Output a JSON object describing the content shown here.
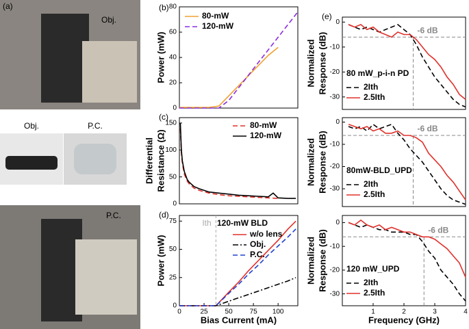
{
  "photo_panel": {
    "label": "(a)",
    "top_label": "Obj.",
    "mid_left_label": "Obj.",
    "mid_right_label": "P.C.",
    "bottom_label": "P.C."
  },
  "chart_data": [
    {
      "type": "line",
      "panel": "(b)",
      "ylabel": "Power (mW)",
      "x": [
        0,
        10,
        20,
        30,
        40,
        50,
        60,
        70,
        80,
        90,
        100,
        110,
        120
      ],
      "xlim": [
        0,
        120
      ],
      "ylim": [
        0,
        80
      ],
      "yticks": [
        0,
        20,
        40,
        60,
        80
      ],
      "series": [
        {
          "name": "80-mW",
          "color": "#f0a030",
          "dash": "solid",
          "values": [
            0.5,
            0.5,
            0.5,
            0.5,
            1.6,
            9.6,
            17.6,
            25.6,
            33.6,
            41.6,
            48,
            null,
            null
          ]
        },
        {
          "name": "120-mW",
          "color": "#8a2be2",
          "dash": "dashed",
          "values": [
            0,
            0,
            0,
            0,
            0,
            6,
            16,
            26,
            36,
            46,
            56,
            66,
            76
          ]
        }
      ]
    },
    {
      "type": "line",
      "panel": "(c)",
      "ylabel": [
        "Differential",
        "Resistance (Ω)"
      ],
      "x": [
        1,
        2,
        3,
        5,
        8,
        10,
        15,
        20,
        30,
        40,
        50,
        60,
        70,
        80,
        90,
        95,
        100,
        110,
        118
      ],
      "xlim": [
        0,
        120
      ],
      "ylim": [
        0,
        160
      ],
      "yticks": [
        0,
        50,
        100,
        150
      ],
      "series": [
        {
          "name": "80-mW",
          "color": "#e0302a",
          "dash": "dashed",
          "values": [
            140,
            95,
            75,
            55,
            42,
            37,
            29,
            25,
            20,
            17,
            15,
            14,
            13,
            12,
            11,
            10.5,
            10,
            null,
            null
          ]
        },
        {
          "name": "120-mW",
          "color": "#000000",
          "dash": "solid",
          "values": [
            150,
            100,
            80,
            60,
            45,
            40,
            32,
            28,
            22,
            20,
            18,
            16,
            15,
            14,
            13,
            20,
            11,
            10,
            10
          ]
        }
      ]
    },
    {
      "type": "line",
      "panel": "(d)",
      "ylabel": "Power (mW)",
      "xlabel": "Bias Current (mA)",
      "note": "120-mW BLD",
      "ref": {
        "x": 37,
        "label": "Ith"
      },
      "x": [
        0,
        10,
        20,
        30,
        37,
        40,
        50,
        60,
        70,
        80,
        90,
        100,
        110,
        118
      ],
      "xlim": [
        0,
        120
      ],
      "xticks": [
        0,
        25,
        50,
        75,
        100
      ],
      "ylim": [
        0,
        80
      ],
      "yticks": [
        0,
        25,
        50,
        75
      ],
      "series": [
        {
          "name": "w/o lens",
          "color": "#e0302a",
          "dash": "solid",
          "values": [
            0,
            0,
            0,
            0,
            0,
            2.8,
            12,
            21,
            31,
            40,
            49,
            58,
            68,
            75
          ]
        },
        {
          "name": "Obj.",
          "color": "#000000",
          "dash": "dashdot",
          "values": [
            0,
            0,
            0,
            0,
            0,
            0.9,
            4,
            7,
            10,
            13,
            16,
            19,
            22,
            25
          ]
        },
        {
          "name": "P.C.",
          "color": "#2040d0",
          "dash": "dashed",
          "values": [
            0,
            0,
            0,
            0,
            0,
            2.5,
            11,
            19,
            28,
            36,
            45,
            53,
            61,
            68
          ]
        }
      ]
    },
    {
      "type": "line",
      "panel": "(e)",
      "title": "80 mW_p-i-n PD",
      "ylabel": [
        "Normalized",
        "Response (dB)"
      ],
      "ref": {
        "x": 2.3,
        "y": -6,
        "label": "-6 dB"
      },
      "x": [
        0.2,
        0.4,
        0.6,
        0.8,
        1.0,
        1.2,
        1.4,
        1.6,
        1.8,
        2.0,
        2.2,
        2.4,
        2.6,
        2.8,
        3.0,
        3.2,
        3.4,
        3.6,
        3.8,
        4.0
      ],
      "xlim": [
        0,
        4
      ],
      "ylim": [
        -35,
        2
      ],
      "yticks": [
        0,
        -10,
        -20,
        -30
      ],
      "series": [
        {
          "name": "2Ith",
          "color": "#000000",
          "dash": "dashed",
          "values": [
            -1,
            -2,
            -3,
            -2,
            -3,
            -4,
            -3,
            -2,
            -1,
            -3,
            -5,
            -9,
            -14,
            -18,
            -22,
            -25,
            -28,
            -31,
            -33,
            -34
          ]
        },
        {
          "name": "2.5Ith",
          "color": "#e0302a",
          "dash": "solid",
          "values": [
            -1,
            -2,
            -1,
            -3,
            -2,
            -4,
            -5,
            -6,
            -4,
            -5,
            -5,
            -7,
            -10,
            -13,
            -15,
            -18,
            -22,
            -25,
            -29,
            -31
          ]
        }
      ]
    },
    {
      "type": "line",
      "title": "80mW-BLD_UPD",
      "ylabel": [
        "Normalized",
        "Response (dB)"
      ],
      "ref": {
        "x": 2.3,
        "y": -6,
        "label": "-6 dB"
      },
      "x": [
        0.2,
        0.4,
        0.6,
        0.8,
        1.0,
        1.2,
        1.4,
        1.6,
        1.8,
        2.0,
        2.2,
        2.4,
        2.6,
        2.8,
        3.0,
        3.2,
        3.4,
        3.6,
        3.8,
        4.0
      ],
      "xlim": [
        0,
        4
      ],
      "ylim": [
        -38,
        2
      ],
      "yticks": [
        0,
        -10,
        -20,
        -30
      ],
      "series": [
        {
          "name": "2Ith",
          "color": "#000000",
          "dash": "dashed",
          "values": [
            -2,
            -3,
            -2,
            -4,
            -1,
            -3,
            -2,
            -1,
            -5,
            -8,
            -12,
            -15,
            -18,
            -22,
            -26,
            -30,
            -33,
            -35,
            -36,
            -37
          ]
        },
        {
          "name": "2.5Ith",
          "color": "#e0302a",
          "dash": "solid",
          "values": [
            -1,
            -2,
            -3,
            -2,
            -4,
            -3,
            -5,
            -5,
            -4,
            -6,
            -6,
            -7,
            -9,
            -14,
            -17,
            -20,
            -24,
            -27,
            -31,
            -35
          ]
        }
      ]
    },
    {
      "type": "line",
      "title": "120 mW_UPD",
      "ylabel": [
        "Normalized",
        "Response (dB)"
      ],
      "xlabel": "Frequency (GHz)",
      "ref": {
        "x": 2.65,
        "y": -6,
        "label": "-6 dB"
      },
      "x": [
        0.2,
        0.4,
        0.6,
        0.8,
        1.0,
        1.2,
        1.4,
        1.6,
        1.8,
        2.0,
        2.2,
        2.4,
        2.6,
        2.8,
        3.0,
        3.2,
        3.4,
        3.6,
        3.8,
        4.0
      ],
      "xlim": [
        0,
        4
      ],
      "xticks": [
        1,
        2,
        3,
        4
      ],
      "ylim": [
        -35,
        3
      ],
      "yticks": [
        0,
        -10,
        -20,
        -30
      ],
      "series": [
        {
          "name": "2Ith",
          "color": "#000000",
          "dash": "dashed",
          "values": [
            0,
            -1,
            -2,
            -1,
            -2,
            -3,
            -3,
            -4,
            -4,
            -4,
            -5,
            -5,
            -8,
            -12,
            -15,
            -20,
            -23,
            -26,
            -30,
            -33
          ]
        },
        {
          "name": "2.5Ith",
          "color": "#e0302a",
          "dash": "solid",
          "values": [
            0,
            -1,
            1,
            -1,
            -2,
            -1,
            -3,
            -2,
            -3,
            -4,
            -4,
            -5,
            -6,
            -6,
            -7,
            -9,
            -11,
            -14,
            -17,
            -23
          ]
        }
      ]
    }
  ]
}
